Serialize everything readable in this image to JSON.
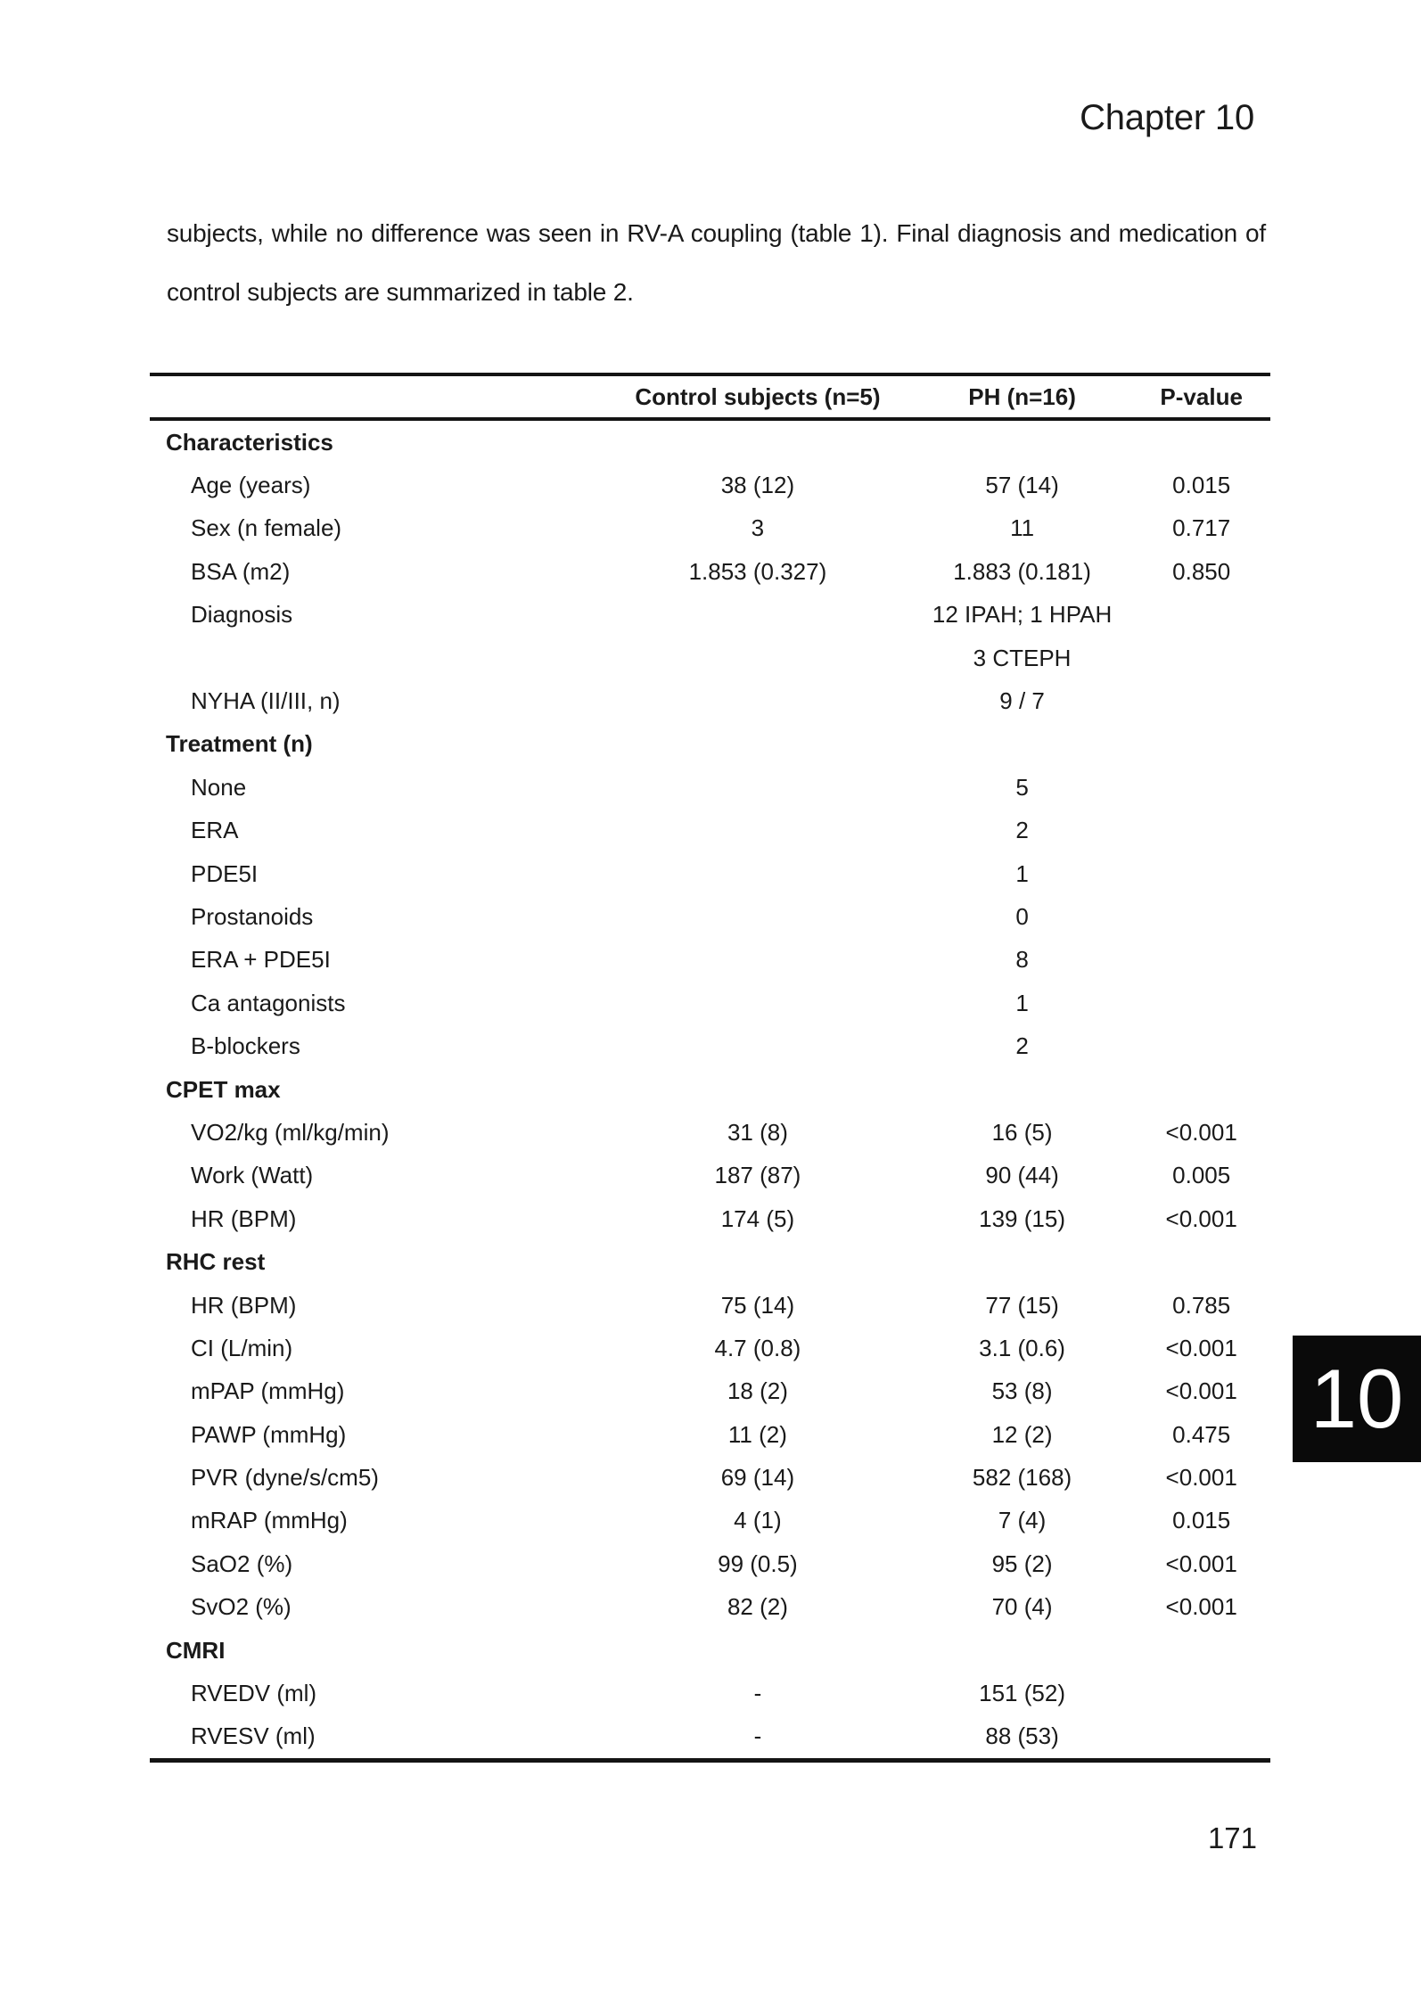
{
  "colors": {
    "text": "#1a1a1a",
    "rule": "#141414",
    "tab_bg": "#0a0a0a",
    "tab_text": "#ffffff",
    "page_bg": "#ffffff"
  },
  "page": {
    "chapter_header": "Chapter 10",
    "chapter_tab_number": "10",
    "page_number": "171"
  },
  "paragraph": {
    "line1": "subjects, while no difference was seen in RV-A coupling (table 1). Final diagnosis and medication of",
    "line2": "control subjects are summarized in table 2."
  },
  "table": {
    "headers": {
      "label": "",
      "control": "Control subjects (n=5)",
      "ph": "PH (n=16)",
      "p": "P-value"
    },
    "rows": [
      {
        "label": "Characteristics",
        "section": true,
        "control": "",
        "ph": "",
        "p": ""
      },
      {
        "label": "Age (years)",
        "control": "38 (12)",
        "ph": "57 (14)",
        "p": "0.015"
      },
      {
        "label": "Sex (n female)",
        "control": "3",
        "ph": "11",
        "p": "0.717"
      },
      {
        "label": "BSA (m2)",
        "control": "1.853 (0.327)",
        "ph": "1.883 (0.181)",
        "p": "0.850"
      },
      {
        "label": "Diagnosis",
        "control": "",
        "ph": "12 IPAH; 1 HPAH",
        "p": ""
      },
      {
        "label": "",
        "control": "",
        "ph": "3 CTEPH",
        "p": ""
      },
      {
        "label": "NYHA (II/III, n)",
        "control": "",
        "ph": "9 / 7",
        "p": ""
      },
      {
        "label": "Treatment (n)",
        "section": true,
        "control": "",
        "ph": "",
        "p": ""
      },
      {
        "label": "None",
        "control": "",
        "ph": "5",
        "p": ""
      },
      {
        "label": "ERA",
        "control": "",
        "ph": "2",
        "p": ""
      },
      {
        "label": "PDE5I",
        "control": "",
        "ph": "1",
        "p": ""
      },
      {
        "label": "Prostanoids",
        "control": "",
        "ph": "0",
        "p": ""
      },
      {
        "label": "ERA + PDE5I",
        "control": "",
        "ph": "8",
        "p": ""
      },
      {
        "label": "Ca antagonists",
        "control": "",
        "ph": "1",
        "p": ""
      },
      {
        "label": "B-blockers",
        "control": "",
        "ph": "2",
        "p": ""
      },
      {
        "label": "CPET max",
        "section": true,
        "control": "",
        "ph": "",
        "p": ""
      },
      {
        "label": "VO2/kg (ml/kg/min)",
        "control": "31 (8)",
        "ph": "16 (5)",
        "p": "<0.001"
      },
      {
        "label": "Work (Watt)",
        "control": "187 (87)",
        "ph": "90 (44)",
        "p": "0.005"
      },
      {
        "label": "HR (BPM)",
        "control": "174 (5)",
        "ph": "139 (15)",
        "p": "<0.001"
      },
      {
        "label": "RHC rest",
        "section": true,
        "control": "",
        "ph": "",
        "p": ""
      },
      {
        "label": "HR (BPM)",
        "control": "75 (14)",
        "ph": "77 (15)",
        "p": "0.785"
      },
      {
        "label": "CI (L/min)",
        "control": "4.7 (0.8)",
        "ph": "3.1 (0.6)",
        "p": "<0.001"
      },
      {
        "label": "mPAP (mmHg)",
        "control": "18 (2)",
        "ph": "53 (8)",
        "p": "<0.001"
      },
      {
        "label": "PAWP (mmHg)",
        "control": "11 (2)",
        "ph": "12 (2)",
        "p": "0.475"
      },
      {
        "label": "PVR (dyne/s/cm5)",
        "control": "69 (14)",
        "ph": "582 (168)",
        "p": "<0.001"
      },
      {
        "label": "mRAP (mmHg)",
        "control": "4 (1)",
        "ph": "7 (4)",
        "p": "0.015"
      },
      {
        "label": "SaO2 (%)",
        "control": "99 (0.5)",
        "ph": "95 (2)",
        "p": "<0.001"
      },
      {
        "label": "SvO2 (%)",
        "control": "82 (2)",
        "ph": "70 (4)",
        "p": "<0.001"
      },
      {
        "label": "CMRI",
        "section": true,
        "control": "",
        "ph": "",
        "p": ""
      },
      {
        "label": "RVEDV (ml)",
        "control": "-",
        "ph": "151 (52)",
        "p": ""
      },
      {
        "label": "RVESV (ml)",
        "control": "-",
        "ph": "88 (53)",
        "p": ""
      }
    ]
  }
}
